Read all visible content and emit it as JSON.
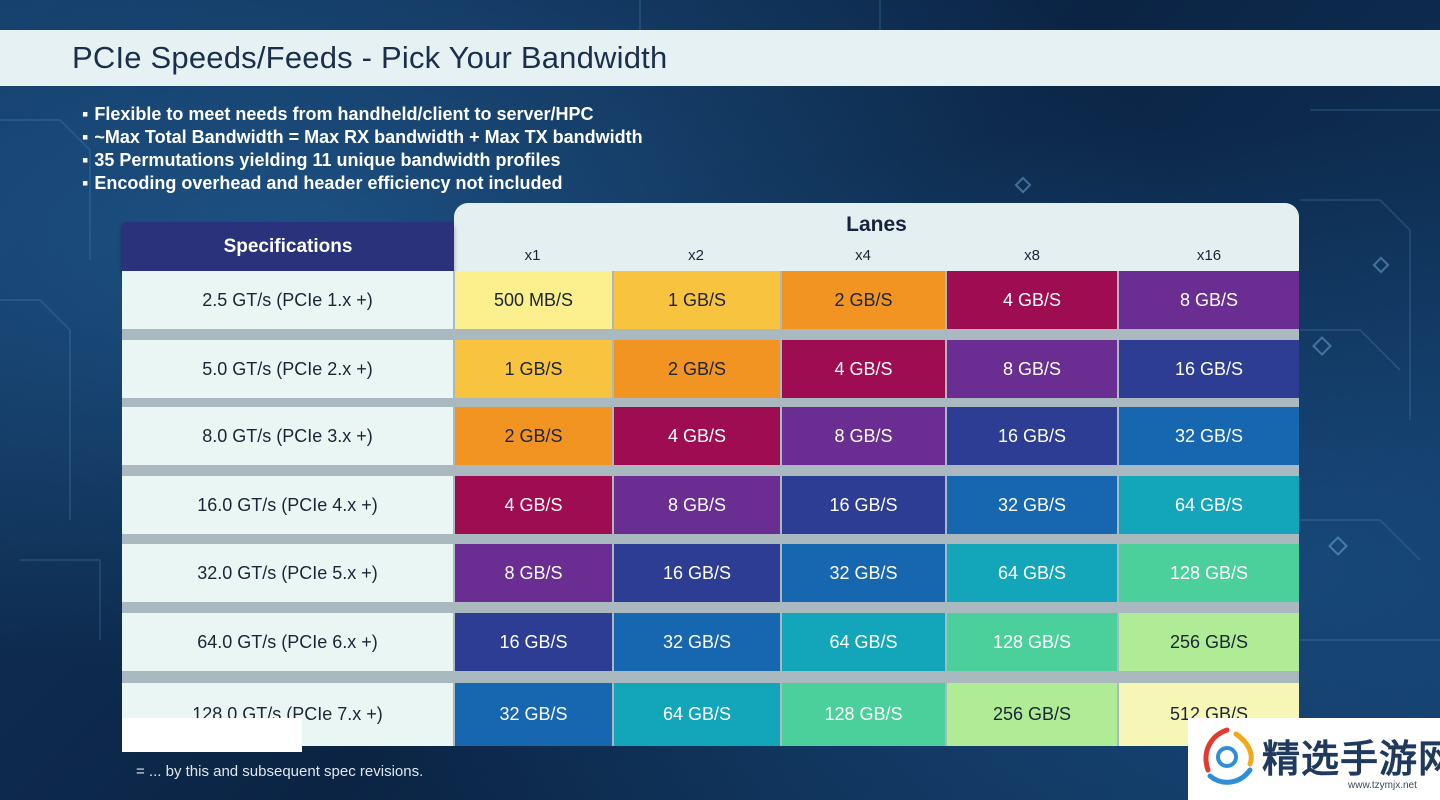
{
  "title": "PCIe Speeds/Feeds - Pick Your Bandwidth",
  "bullets": [
    "Flexible to meet needs from handheld/client to server/HPC",
    "~Max Total Bandwidth = Max RX bandwidth + Max TX bandwidth",
    "35 Permutations yielding 11 unique bandwidth profiles",
    "Encoding overhead and header efficiency not included"
  ],
  "table": {
    "spec_header": "Specifications",
    "lanes_title": "Lanes",
    "lanes": [
      "x1",
      "x2",
      "x4",
      "x8",
      "x16"
    ],
    "rows": [
      {
        "spec": "2.5 GT/s (PCIe 1.x +)",
        "values": [
          "500 MB/S",
          "1 GB/S",
          "2 GB/S",
          "4 GB/S",
          "8 GB/S"
        ]
      },
      {
        "spec": "5.0 GT/s (PCIe 2.x +)",
        "values": [
          "1 GB/S",
          "2 GB/S",
          "4 GB/S",
          "8 GB/S",
          "16 GB/S"
        ]
      },
      {
        "spec": "8.0 GT/s (PCIe 3.x +)",
        "values": [
          "2 GB/S",
          "4 GB/S",
          "8 GB/S",
          "16 GB/S",
          "32 GB/S"
        ]
      },
      {
        "spec": "16.0 GT/s (PCIe 4.x +)",
        "values": [
          "4 GB/S",
          "8 GB/S",
          "16 GB/S",
          "32 GB/S",
          "64 GB/S"
        ]
      },
      {
        "spec": "32.0 GT/s (PCIe 5.x +)",
        "values": [
          "8 GB/S",
          "16 GB/S",
          "32 GB/S",
          "64 GB/S",
          "128 GB/S"
        ]
      },
      {
        "spec": "64.0 GT/s (PCIe 6.x +)",
        "values": [
          "16 GB/S",
          "32 GB/S",
          "64 GB/S",
          "128 GB/S",
          "256 GB/S"
        ]
      },
      {
        "spec": "128.0 GT/s (PCIe 7.x +)",
        "values": [
          "32 GB/S",
          "64 GB/S",
          "128 GB/S",
          "256 GB/S",
          "512 GB/S"
        ]
      }
    ],
    "bandwidth_colors": {
      "500 MB/S": "#fbef8e",
      "1 GB/S": "#f8c43f",
      "2 GB/S": "#f29422",
      "4 GB/S": "#9e0c52",
      "8 GB/S": "#6a2d91",
      "16 GB/S": "#2c3d93",
      "32 GB/S": "#1766b0",
      "64 GB/S": "#13a5b9",
      "128 GB/S": "#4bcf9b",
      "256 GB/S": "#b0ec96",
      "512 GB/S": "#f6f6b6"
    },
    "light_text_bandwidths": [
      "500 MB/S",
      "1 GB/S",
      "2 GB/S",
      "256 GB/S",
      "512 GB/S"
    ]
  },
  "footnote": "= ... by this and subsequent spec revisions.",
  "watermark": {
    "text": "精选手游网",
    "url": "www.tzymjx.net"
  }
}
